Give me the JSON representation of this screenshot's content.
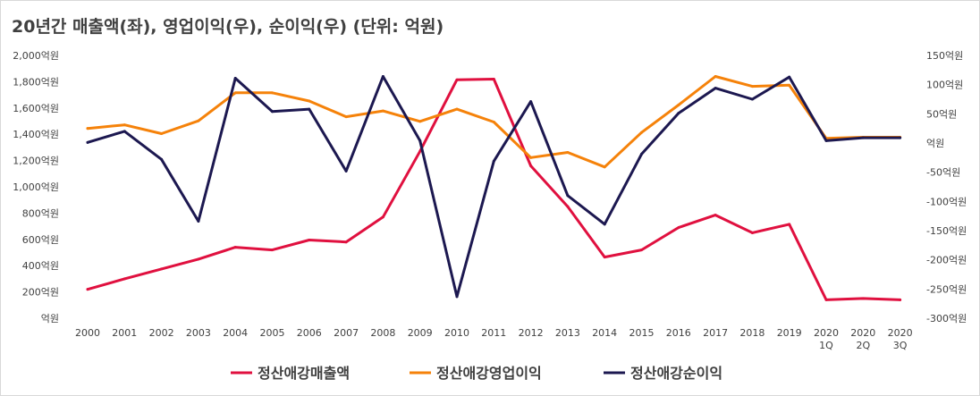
{
  "chart_data": {
    "type": "line",
    "title": "20년간 매출액(좌), 영업이익(우), 순이익(우) (단위: 억원)",
    "categories": [
      [
        "2000"
      ],
      [
        "2001"
      ],
      [
        "2002"
      ],
      [
        "2003"
      ],
      [
        "2004"
      ],
      [
        "2005"
      ],
      [
        "2006"
      ],
      [
        "2007"
      ],
      [
        "2008"
      ],
      [
        "2009"
      ],
      [
        "2010"
      ],
      [
        "2011"
      ],
      [
        "2012"
      ],
      [
        "2013"
      ],
      [
        "2014"
      ],
      [
        "2015"
      ],
      [
        "2016"
      ],
      [
        "2017"
      ],
      [
        "2018"
      ],
      [
        "2019"
      ],
      [
        "2020",
        "1Q"
      ],
      [
        "2020",
        "2Q"
      ],
      [
        "2020",
        "3Q"
      ]
    ],
    "y_left": {
      "ticks": [
        0,
        200,
        400,
        600,
        800,
        1000,
        1200,
        1400,
        1600,
        1800,
        2000
      ],
      "tick_labels": [
        "억원",
        "200억원",
        "400억원",
        "600억원",
        "800억원",
        "1,000억원",
        "1,200억원",
        "1,400억원",
        "1,600억원",
        "1,800억원",
        "2,000억원"
      ],
      "range": [
        0,
        2000
      ]
    },
    "y_right": {
      "ticks": [
        -300,
        -250,
        -200,
        -150,
        -100,
        -50,
        0,
        50,
        100,
        150
      ],
      "tick_labels": [
        "-300억원",
        "-250억원",
        "-200억원",
        "-150억원",
        "-100억원",
        "-50억원",
        "억원",
        "50억원",
        "100억원",
        "150억원"
      ],
      "range": [
        -300,
        150
      ]
    },
    "grid": false,
    "legend_position": "bottom",
    "series": [
      {
        "name": "정산애강매출액",
        "axis": "left",
        "color": "#e0103f",
        "values": [
          220,
          300,
          375,
          450,
          540,
          520,
          595,
          580,
          770,
          1270,
          1815,
          1820,
          1160,
          850,
          465,
          520,
          690,
          785,
          650,
          715,
          140,
          150,
          140
        ]
      },
      {
        "name": "정산애강영업이익",
        "axis": "right",
        "color": "#f5820a",
        "values": [
          25,
          31,
          16,
          38,
          86,
          86,
          72,
          45,
          55,
          37,
          58,
          36,
          -25,
          -16,
          -41,
          18,
          65,
          114,
          97,
          99,
          8,
          10,
          10
        ]
      },
      {
        "name": "정산애강순이익",
        "axis": "right",
        "color": "#1c1850",
        "values": [
          1,
          20,
          -28,
          -134,
          111,
          54,
          58,
          -48,
          114,
          4,
          -263,
          -31,
          71,
          -90,
          -139,
          -19,
          51,
          94,
          75,
          113,
          4,
          9,
          9
        ]
      }
    ]
  }
}
